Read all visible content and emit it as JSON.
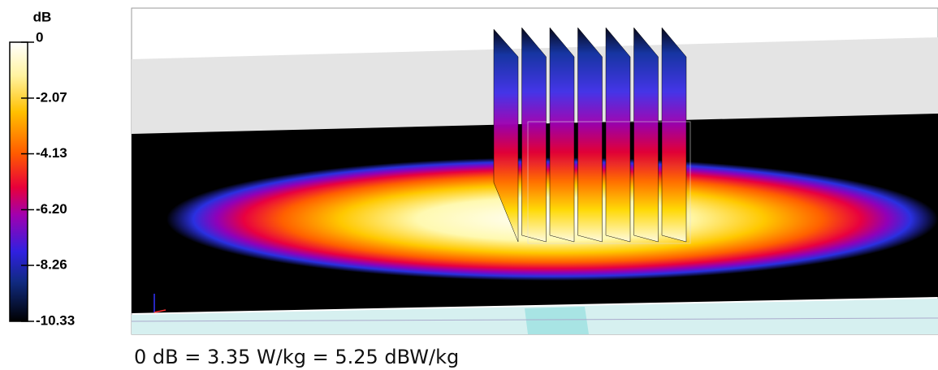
{
  "colorbar": {
    "unit": "dB",
    "ticks": [
      0,
      {
        "value": -2.07,
        "label": "-2.07"
      },
      {
        "value": -4.13,
        "label": "-4.13"
      },
      {
        "value": -6.2,
        "label": "-6.20"
      },
      {
        "value": -8.26,
        "label": "-8.26"
      },
      -10.33
    ]
  },
  "caption": "0 dB = 3.35 W/kg = 5.25 dBW/kg"
}
